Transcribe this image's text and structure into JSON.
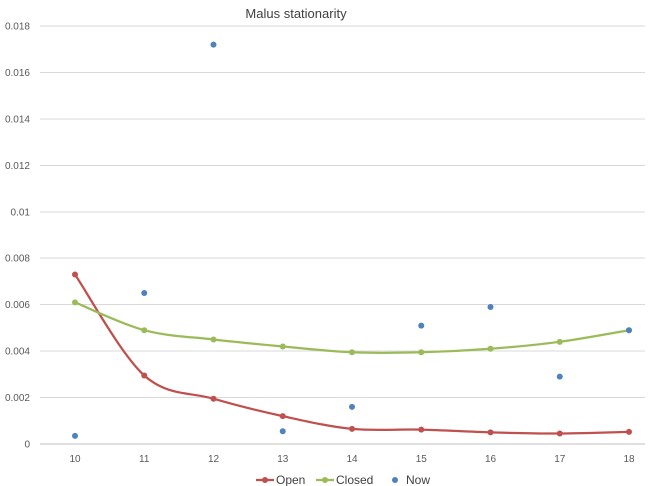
{
  "chart_data": {
    "type": "line",
    "title": "Malus  stationarity",
    "x": [
      10,
      11,
      12,
      13,
      14,
      15,
      16,
      17,
      18
    ],
    "x_tick_labels": [
      "10",
      "11",
      "12",
      "13",
      "14",
      "15",
      "16",
      "17",
      "18"
    ],
    "ylim": [
      0,
      0.018
    ],
    "y_tick_labels": [
      "0",
      "0.002",
      "0.004",
      "0.006",
      "0.008",
      "0.01",
      "0.012",
      "0.014",
      "0.016",
      "0.018"
    ],
    "y_ticks": [
      0,
      0.002,
      0.004,
      0.006,
      0.008,
      0.01,
      0.012,
      0.014,
      0.016,
      0.018
    ],
    "grid": true,
    "legend_position": "bottom",
    "series": [
      {
        "name": "Open",
        "style": "line-markers",
        "color": "#C0504D",
        "values": [
          0.0073,
          0.00295,
          0.00195,
          0.0012,
          0.00065,
          0.00062,
          0.0005,
          0.00045,
          0.00052
        ]
      },
      {
        "name": "Closed",
        "style": "line-markers",
        "color": "#9BBB59",
        "values": [
          0.0061,
          0.0049,
          0.0045,
          0.0042,
          0.00395,
          0.00395,
          0.0041,
          0.0044,
          0.0049
        ]
      },
      {
        "name": "Now",
        "style": "markers",
        "color": "#4F81BD",
        "values": [
          0.00035,
          0.0065,
          0.0172,
          0.00055,
          0.0016,
          0.0051,
          0.0059,
          0.0029,
          0.0049
        ]
      }
    ]
  }
}
